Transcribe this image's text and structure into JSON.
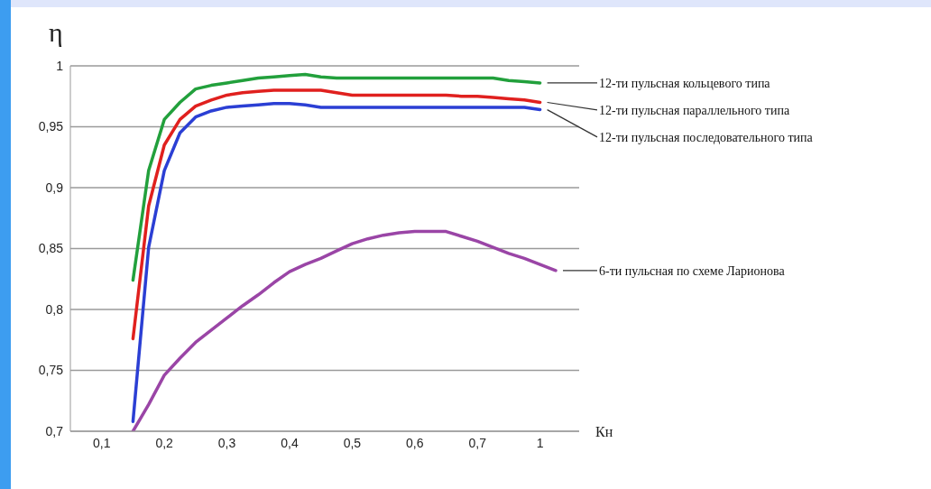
{
  "chart_data": {
    "type": "line",
    "ylabel": "η",
    "xlabel": "Кн",
    "categories": [
      "0,1",
      null,
      null,
      null,
      "0,2",
      null,
      null,
      null,
      "0,3",
      null,
      null,
      null,
      "0,4",
      null,
      null,
      null,
      "0,5",
      null,
      null,
      null,
      "0,6",
      null,
      null,
      null,
      "0,7",
      null,
      null,
      null,
      "1",
      null
    ],
    "series": [
      {
        "name": "12-ти пульсная кольцевого типа",
        "color": "#22a03c",
        "values": [
          null,
          null,
          0.824,
          0.914,
          0.956,
          0.97,
          0.981,
          0.984,
          0.986,
          0.988,
          0.99,
          0.991,
          0.992,
          0.993,
          0.991,
          0.99,
          0.99,
          0.99,
          0.99,
          0.99,
          0.99,
          0.99,
          0.99,
          0.99,
          0.99,
          0.99,
          0.988,
          0.987,
          0.986,
          null
        ]
      },
      {
        "name": "12-ти пульсная параллельного типа",
        "color": "#e0201e",
        "values": [
          null,
          null,
          0.776,
          0.885,
          0.935,
          0.956,
          0.967,
          0.972,
          0.976,
          0.978,
          0.979,
          0.98,
          0.98,
          0.98,
          0.98,
          0.978,
          0.976,
          0.976,
          0.976,
          0.976,
          0.976,
          0.976,
          0.976,
          0.975,
          0.975,
          0.974,
          0.973,
          0.972,
          0.97,
          null
        ]
      },
      {
        "name": "12-ти пульсная последовательного типа",
        "color": "#2b3fd4",
        "values": [
          null,
          null,
          0.708,
          0.851,
          0.914,
          0.945,
          0.958,
          0.963,
          0.966,
          0.967,
          0.968,
          0.969,
          0.969,
          0.968,
          0.966,
          0.966,
          0.966,
          0.966,
          0.966,
          0.966,
          0.966,
          0.966,
          0.966,
          0.966,
          0.966,
          0.966,
          0.966,
          0.966,
          0.964,
          null
        ]
      },
      {
        "name": "6-ти пульсная по схеме Ларионова",
        "color": "#9a45a6",
        "values": [
          null,
          null,
          0.7,
          0.722,
          0.746,
          0.76,
          0.773,
          0.783,
          0.793,
          0.803,
          0.812,
          0.822,
          0.831,
          0.837,
          0.842,
          0.848,
          0.854,
          0.858,
          0.861,
          0.863,
          0.864,
          0.864,
          0.864,
          0.86,
          0.856,
          0.851,
          0.846,
          0.842,
          0.837,
          0.832
        ]
      }
    ],
    "ylim": [
      0.7,
      1
    ],
    "yticks": [
      {
        "value": 0.7,
        "label": "0,7"
      },
      {
        "value": 0.75,
        "label": "0,75"
      },
      {
        "value": 0.8,
        "label": "0,8"
      },
      {
        "value": 0.85,
        "label": "0,85"
      },
      {
        "value": 0.9,
        "label": "0,9"
      },
      {
        "value": 0.95,
        "label": "0,95"
      },
      {
        "value": 1,
        "label": "1"
      }
    ],
    "grid": "y",
    "legend": false,
    "marker": "none",
    "line_style": "solid"
  }
}
